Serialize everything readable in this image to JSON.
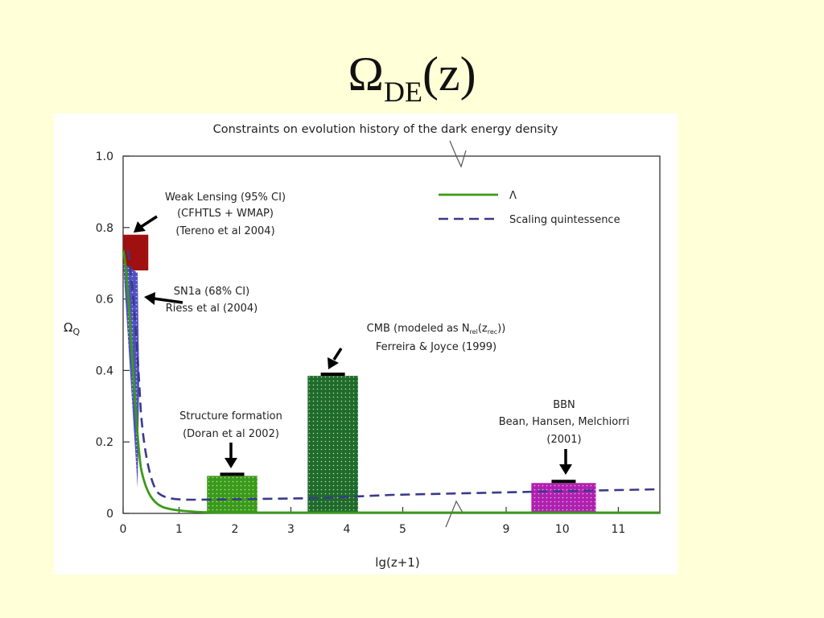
{
  "slide_title": {
    "main": "Ω",
    "sub": "DE",
    "suffix": "(z)"
  },
  "chart_data": {
    "type": "bar",
    "title": "Constraints on evolution history of the dark energy density",
    "xlabel": "lg(z+1)",
    "ylabel": "Ω",
    "ylabel_sub": "Q",
    "ylim": [
      0,
      1.0
    ],
    "yticks": [
      "0",
      "0.2",
      "0.4",
      "0.6",
      "0.8",
      "1.0"
    ],
    "xticks": [
      "0",
      "1",
      "2",
      "3",
      "4",
      "5",
      "9",
      "10",
      "11"
    ],
    "legend": [
      {
        "name": "Λ",
        "style": "solid",
        "color": "#3a9a1a"
      },
      {
        "name": "Scaling quintessence",
        "style": "dashed",
        "color": "#3a3a8a"
      }
    ],
    "constraints": [
      {
        "label": [
          "Weak Lensing (95% CI)",
          "(CFHTLS + WMAP)",
          "(Tereno et al 2004)"
        ],
        "x": [
          0.0,
          0.45
        ],
        "y": [
          0.68,
          0.78
        ],
        "color": "#a01010"
      },
      {
        "label": [
          "SN1a (68% CI)",
          "Riess et al (2004)"
        ],
        "color": "#5050c0"
      },
      {
        "label": [
          "Structure formation",
          "(Doran et al 2002)"
        ],
        "x": [
          1.5,
          2.4
        ],
        "y": [
          0,
          0.105
        ],
        "color": "#3a9a1a"
      },
      {
        "label": [
          "CMB (modeled as N",
          "(z",
          "))",
          "Ferreira & Joyce (1999)"
        ],
        "sublabels": [
          "rel",
          "rec"
        ],
        "x": [
          3.3,
          4.2
        ],
        "y": [
          0,
          0.385
        ],
        "color": "#1e6b2a"
      },
      {
        "label": [
          "BBN",
          "Bean, Hansen, Melchiorri",
          "(2001)"
        ],
        "x": [
          9.45,
          10.6
        ],
        "y": [
          0,
          0.085
        ],
        "color": "#b020b0"
      }
    ]
  }
}
